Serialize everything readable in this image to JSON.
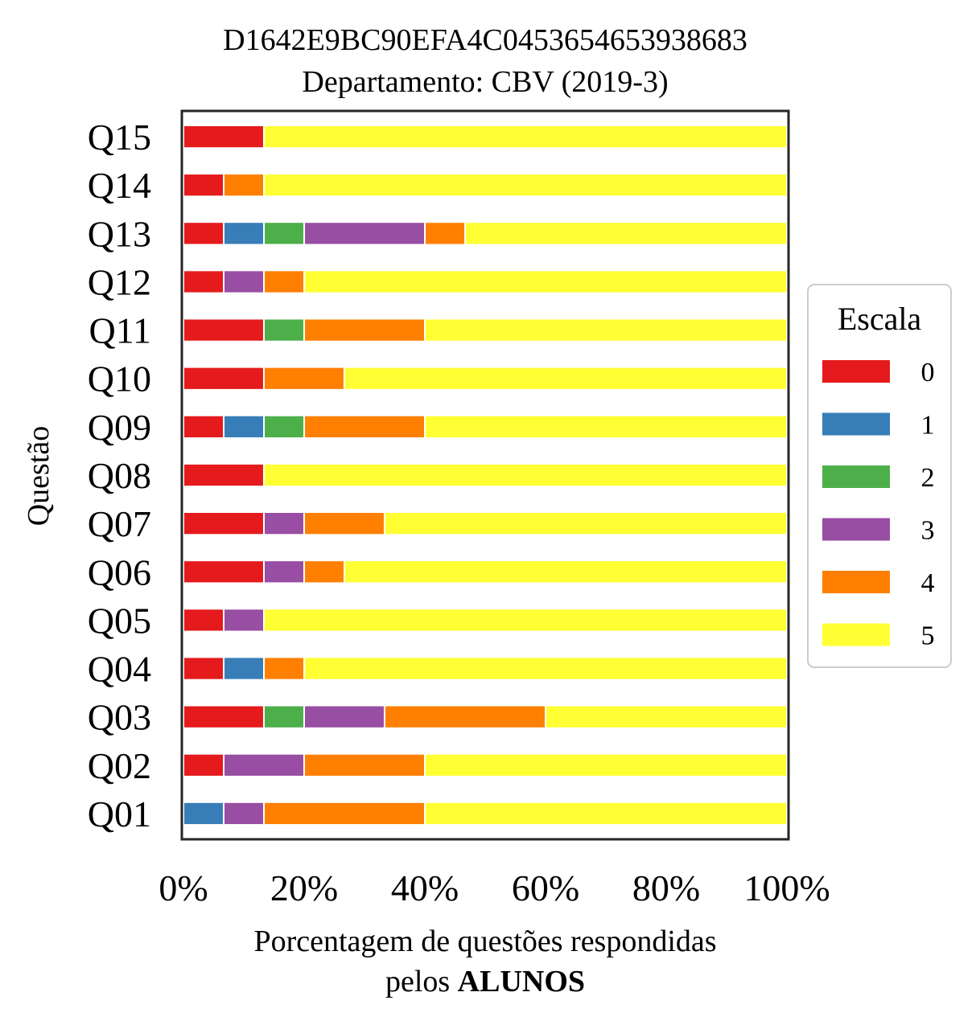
{
  "chart_data": {
    "type": "bar",
    "orientation": "horizontal",
    "stacked": true,
    "title": "D1642E9BC90EFA4C0453654653938683",
    "subtitle": "Departamento: CBV (2019-3)",
    "ylabel": "Questão",
    "xlabel_line1": "Porcentagem de questões respondidas",
    "xlabel_line2_prefix": "pelos ",
    "xlabel_line2_bold": "ALUNOS",
    "xlim": [
      0,
      100
    ],
    "xticks": [
      "0%",
      "20%",
      "40%",
      "60%",
      "80%",
      "100%"
    ],
    "xtick_values": [
      0,
      20,
      40,
      60,
      80,
      100
    ],
    "grid": false,
    "legend": {
      "title": "Escala",
      "placement": "right"
    },
    "categories": [
      "Q01",
      "Q02",
      "Q03",
      "Q04",
      "Q05",
      "Q06",
      "Q07",
      "Q08",
      "Q09",
      "Q10",
      "Q11",
      "Q12",
      "Q13",
      "Q14",
      "Q15"
    ],
    "series": [
      {
        "name": "0",
        "color": "#e41a1c",
        "values": [
          0,
          6.67,
          13.33,
          6.67,
          6.67,
          13.33,
          13.33,
          13.33,
          6.67,
          13.33,
          13.33,
          6.67,
          6.67,
          6.67,
          13.33
        ]
      },
      {
        "name": "1",
        "color": "#377eb8",
        "values": [
          6.67,
          0,
          0,
          6.67,
          0,
          0,
          0,
          0,
          6.67,
          0,
          0,
          0,
          6.67,
          0,
          0
        ]
      },
      {
        "name": "2",
        "color": "#4daf4a",
        "values": [
          0,
          0,
          6.67,
          0,
          0,
          0,
          0,
          0,
          6.67,
          0,
          6.67,
          0,
          6.67,
          0,
          0
        ]
      },
      {
        "name": "3",
        "color": "#984ea3",
        "values": [
          6.67,
          13.33,
          13.33,
          0,
          6.67,
          6.67,
          6.67,
          0,
          0,
          0,
          0,
          6.67,
          20,
          0,
          0
        ]
      },
      {
        "name": "4",
        "color": "#ff7f00",
        "values": [
          26.67,
          20,
          26.67,
          6.67,
          0,
          6.67,
          13.33,
          0,
          20,
          13.33,
          20,
          6.67,
          6.67,
          6.67,
          0
        ]
      },
      {
        "name": "5",
        "color": "#ffff33",
        "values": [
          60,
          60,
          40,
          80,
          86.67,
          73.33,
          66.67,
          86.67,
          60,
          73.33,
          60,
          80,
          53.33,
          86.67,
          86.67
        ]
      }
    ]
  }
}
